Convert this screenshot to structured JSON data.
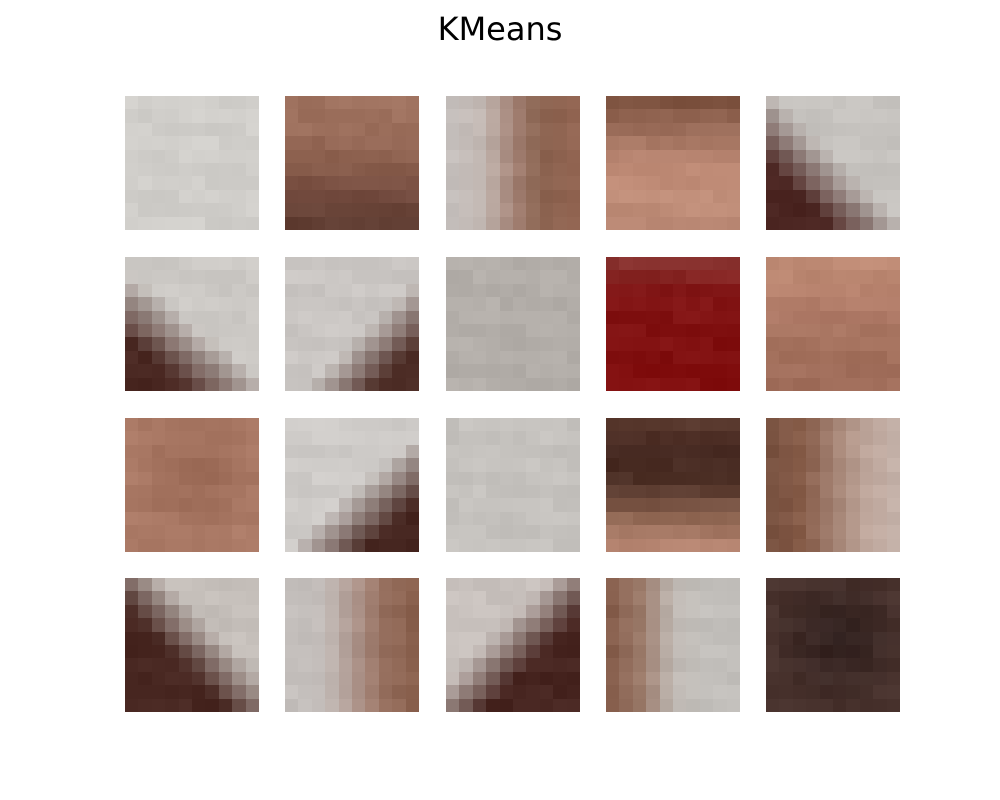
{
  "title": "KMeans",
  "patches": [
    {
      "type": "flat",
      "c": "#d3d1cd"
    },
    {
      "type": "vgrad",
      "stops": [
        "#a27562",
        "#9d705d",
        "#8e6250",
        "#774f42",
        "#634035"
      ]
    },
    {
      "type": "hgrad",
      "stops": [
        "#c9c3c0",
        "#c4bab5",
        "#a8877a",
        "#8c6450",
        "#956855"
      ]
    },
    {
      "type": "vgrad",
      "stops": [
        "#805542",
        "#a1725f",
        "#c08c77",
        "#c4917c",
        "#bf8d79"
      ]
    },
    {
      "type": "diag",
      "dir": "bl-dark",
      "light": "#c9c6c2",
      "dark": "#4c2622"
    },
    {
      "type": "diag",
      "dir": "bl-dark-steep",
      "light": "#cfccc8",
      "dark": "#4c2a24"
    },
    {
      "type": "diag",
      "dir": "br-dark",
      "light": "#cdc9c6",
      "dark": "#4d2d26"
    },
    {
      "type": "flat",
      "c": "#b6b1ac"
    },
    {
      "type": "vgrad",
      "stops": [
        "#8a3330",
        "#861818",
        "#841414",
        "#841313",
        "#851212"
      ]
    },
    {
      "type": "vgrad",
      "stops": [
        "#c28e78",
        "#b9846f",
        "#ad7966",
        "#a6735f",
        "#a3705d"
      ]
    },
    {
      "type": "blob",
      "base": "#ae7d69",
      "center": "#9b6a56"
    },
    {
      "type": "diag",
      "dir": "br-dark-low",
      "light": "#d1cecb",
      "dark": "#4a2a24"
    },
    {
      "type": "flat",
      "c": "#c8c5c1"
    },
    {
      "type": "vgrad",
      "stops": [
        "#5b3b30",
        "#472a22",
        "#52352b",
        "#8f6754",
        "#b88773"
      ]
    },
    {
      "type": "hgrad",
      "stops": [
        "#7d5644",
        "#8a604c",
        "#a48272",
        "#c2a99e",
        "#c5b2a9"
      ]
    },
    {
      "type": "diag",
      "dir": "bl-dark-high",
      "light": "#c8c2bd",
      "dark": "#4b2a24"
    },
    {
      "type": "hgrad",
      "stops": [
        "#c8c3c0",
        "#c6c0bd",
        "#b49e96",
        "#9a7362",
        "#8c6350"
      ]
    },
    {
      "type": "diag",
      "dir": "br-dark-high",
      "light": "#cbc4c0",
      "dark": "#4a2823"
    },
    {
      "type": "hgrad",
      "stops": [
        "#8a6250",
        "#a08070",
        "#c3bcb7",
        "#c6c3bf",
        "#c6c3bf"
      ]
    },
    {
      "type": "blob",
      "base": "#4b3530",
      "center": "#322220"
    }
  ]
}
